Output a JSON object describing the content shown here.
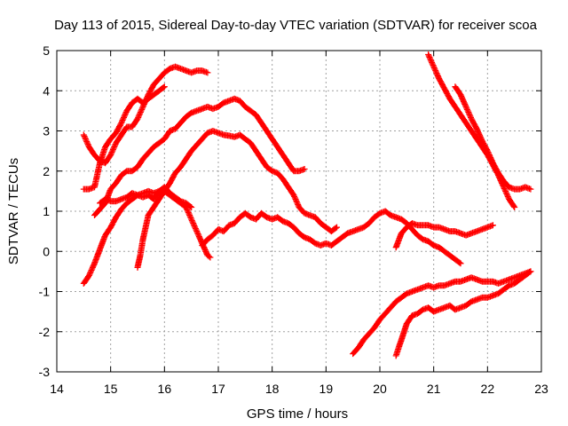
{
  "chart_data": {
    "type": "scatter",
    "title": "Day 113 of 2015, Sidereal Day-to-day VTEC variation (SDTVAR) for receiver scoa",
    "xlabel": "GPS time / hours",
    "ylabel": "SDTVAR / TECUs",
    "xlim": [
      14,
      23
    ],
    "ylim": [
      -3,
      5
    ],
    "xticks": [
      "14",
      "15",
      "16",
      "17",
      "18",
      "19",
      "20",
      "21",
      "22",
      "23"
    ],
    "yticks": [
      "-3",
      "-2",
      "-1",
      "0",
      "1",
      "2",
      "3",
      "4",
      "5"
    ],
    "grid": true,
    "marker": "+",
    "color": "#ff0000",
    "series": [
      {
        "x": [
          14.5,
          14.6,
          14.7,
          14.8,
          14.9,
          15.0,
          15.1,
          15.2,
          15.3,
          15.4,
          15.5,
          15.6,
          15.7,
          15.8,
          15.9,
          16.0,
          16.1,
          16.2,
          16.3,
          16.4,
          16.5,
          16.6,
          16.7,
          16.8
        ],
        "y": [
          2.9,
          2.6,
          2.4,
          2.25,
          2.2,
          2.4,
          2.7,
          2.9,
          3.1,
          3.1,
          3.3,
          3.6,
          3.9,
          4.15,
          4.3,
          4.45,
          4.55,
          4.6,
          4.55,
          4.5,
          4.45,
          4.5,
          4.5,
          4.45
        ]
      },
      {
        "x": [
          14.5,
          14.6,
          14.7,
          14.8,
          14.85,
          14.9,
          15.0,
          15.1,
          15.2,
          15.3,
          15.4,
          15.5,
          15.6,
          15.7,
          15.8,
          15.9,
          16.0
        ],
        "y": [
          1.55,
          1.55,
          1.6,
          2.2,
          2.4,
          2.6,
          2.8,
          2.95,
          3.2,
          3.5,
          3.7,
          3.8,
          3.7,
          3.8,
          3.9,
          4.0,
          4.1
        ]
      },
      {
        "x": [
          14.7,
          14.8,
          14.9,
          15.0,
          15.1,
          15.2,
          15.3,
          15.4,
          15.5,
          15.6,
          15.7,
          15.8,
          15.9,
          16.0,
          16.1,
          16.2,
          16.3,
          16.4,
          16.5,
          16.6,
          16.7,
          16.8,
          16.9,
          17.0,
          17.1,
          17.2,
          17.3,
          17.4,
          17.5,
          17.6,
          17.7,
          17.8,
          17.9,
          18.0,
          18.1,
          18.2,
          18.3,
          18.4,
          18.5,
          18.6
        ],
        "y": [
          0.9,
          1.05,
          1.2,
          1.55,
          1.7,
          1.9,
          2.0,
          2.0,
          2.1,
          2.3,
          2.45,
          2.6,
          2.7,
          2.8,
          3.0,
          3.05,
          3.2,
          3.35,
          3.45,
          3.5,
          3.55,
          3.6,
          3.55,
          3.6,
          3.7,
          3.75,
          3.8,
          3.75,
          3.6,
          3.5,
          3.4,
          3.2,
          3.0,
          2.8,
          2.6,
          2.4,
          2.2,
          2.0,
          2.0,
          2.05
        ]
      },
      {
        "x": [
          15.5,
          15.55,
          15.6,
          15.65,
          15.7,
          15.8,
          15.9,
          16.0,
          16.1,
          16.2,
          16.3,
          16.4,
          16.5,
          16.6,
          16.7,
          16.8,
          16.9,
          17.0,
          17.1,
          17.2,
          17.3,
          17.4,
          17.5,
          17.6,
          17.7,
          17.8,
          17.9,
          18.0,
          18.1,
          18.2,
          18.3,
          18.4,
          18.5,
          18.6,
          18.7,
          18.8,
          18.9,
          19.0,
          19.1,
          19.2
        ],
        "y": [
          -0.4,
          -0.1,
          0.3,
          0.6,
          0.9,
          1.1,
          1.3,
          1.5,
          1.7,
          1.95,
          2.1,
          2.3,
          2.5,
          2.65,
          2.8,
          2.95,
          3.0,
          2.95,
          2.9,
          2.88,
          2.85,
          2.9,
          2.8,
          2.7,
          2.5,
          2.3,
          2.1,
          2.0,
          1.95,
          1.8,
          1.6,
          1.4,
          1.1,
          0.95,
          0.9,
          0.85,
          0.7,
          0.6,
          0.5,
          0.6
        ]
      },
      {
        "x": [
          14.5,
          14.6,
          14.7,
          14.8,
          14.9,
          15.0,
          15.1,
          15.2,
          15.3,
          15.4,
          15.5,
          15.6,
          15.7,
          15.8,
          15.9,
          16.0,
          16.1,
          16.2,
          16.3,
          16.4,
          16.5,
          16.6,
          16.7,
          16.8,
          16.85
        ],
        "y": [
          -0.8,
          -0.6,
          -0.3,
          0.05,
          0.4,
          0.6,
          0.85,
          1.05,
          1.2,
          1.3,
          1.4,
          1.45,
          1.5,
          1.45,
          1.5,
          1.5,
          1.4,
          1.3,
          1.2,
          1.1,
          0.8,
          0.5,
          0.2,
          -0.1,
          -0.15
        ]
      },
      {
        "x": [
          14.8,
          14.9,
          15.0,
          15.1,
          15.2,
          15.3,
          15.4,
          15.5,
          15.6,
          15.7,
          15.8,
          15.9,
          16.0,
          16.1,
          16.2,
          16.3,
          16.4,
          16.5
        ],
        "y": [
          1.2,
          1.3,
          1.25,
          1.25,
          1.3,
          1.35,
          1.45,
          1.4,
          1.35,
          1.4,
          1.3,
          1.5,
          1.6,
          1.45,
          1.35,
          1.25,
          1.2,
          1.1
        ]
      },
      {
        "x": [
          16.7,
          16.8,
          16.9,
          17.0,
          17.1,
          17.2,
          17.3,
          17.4,
          17.5,
          17.6,
          17.7,
          17.8,
          17.9,
          18.0,
          18.1,
          18.2,
          18.3,
          18.4,
          18.5,
          18.6,
          18.7,
          18.8,
          18.9,
          19.0,
          19.1,
          19.2,
          19.3,
          19.4,
          19.5,
          19.6,
          19.7,
          19.8,
          19.9,
          20.0,
          20.1,
          20.2,
          20.3,
          20.4,
          20.5,
          20.6,
          20.7,
          20.8,
          20.9,
          21.0,
          21.1,
          21.2,
          21.3,
          21.4,
          21.5
        ],
        "y": [
          0.15,
          0.3,
          0.4,
          0.55,
          0.5,
          0.65,
          0.7,
          0.85,
          0.95,
          0.85,
          0.8,
          0.95,
          0.85,
          0.8,
          0.85,
          0.75,
          0.7,
          0.6,
          0.45,
          0.35,
          0.3,
          0.2,
          0.15,
          0.2,
          0.15,
          0.25,
          0.35,
          0.45,
          0.5,
          0.55,
          0.6,
          0.7,
          0.85,
          0.95,
          1.0,
          0.9,
          0.85,
          0.8,
          0.7,
          0.55,
          0.4,
          0.3,
          0.25,
          0.15,
          0.1,
          0.0,
          -0.1,
          -0.2,
          -0.3
        ]
      },
      {
        "x": [
          20.3,
          20.4,
          20.5,
          20.6,
          20.7,
          20.8,
          20.9,
          21.0,
          21.1,
          21.2,
          21.3,
          21.4,
          21.5,
          21.6,
          21.7,
          21.8,
          21.9,
          22.0,
          22.1
        ],
        "y": [
          0.1,
          0.45,
          0.6,
          0.7,
          0.65,
          0.65,
          0.65,
          0.6,
          0.6,
          0.55,
          0.5,
          0.5,
          0.45,
          0.4,
          0.45,
          0.5,
          0.55,
          0.6,
          0.65
        ]
      },
      {
        "x": [
          19.5,
          19.6,
          19.7,
          19.8,
          19.9,
          20.0,
          20.1,
          20.2,
          20.3,
          20.4,
          20.5,
          20.6,
          20.7,
          20.8,
          20.9,
          21.0,
          21.1,
          21.2,
          21.3,
          21.4,
          21.5,
          21.6,
          21.7,
          21.8,
          21.9,
          22.0,
          22.1,
          22.2,
          22.3,
          22.4,
          22.5,
          22.6,
          22.7,
          22.8
        ],
        "y": [
          -2.55,
          -2.4,
          -2.2,
          -2.05,
          -1.9,
          -1.7,
          -1.55,
          -1.4,
          -1.25,
          -1.15,
          -1.05,
          -1.0,
          -0.95,
          -0.9,
          -0.85,
          -0.9,
          -0.85,
          -0.85,
          -0.8,
          -0.75,
          -0.75,
          -0.7,
          -0.65,
          -0.7,
          -0.75,
          -0.75,
          -0.75,
          -0.8,
          -0.75,
          -0.7,
          -0.65,
          -0.6,
          -0.55,
          -0.5
        ]
      },
      {
        "x": [
          20.3,
          20.4,
          20.5,
          20.6,
          20.7,
          20.8,
          20.9,
          21.0,
          21.1,
          21.2,
          21.3,
          21.4,
          21.5,
          21.6,
          21.7,
          21.8,
          21.9,
          22.0,
          22.1,
          22.2,
          22.3,
          22.4,
          22.5,
          22.6,
          22.7,
          22.8
        ],
        "y": [
          -2.6,
          -2.2,
          -1.8,
          -1.6,
          -1.55,
          -1.45,
          -1.4,
          -1.5,
          -1.45,
          -1.4,
          -1.35,
          -1.45,
          -1.4,
          -1.35,
          -1.25,
          -1.2,
          -1.15,
          -1.15,
          -1.1,
          -1.05,
          -0.95,
          -0.85,
          -0.8,
          -0.7,
          -0.6,
          -0.5
        ]
      },
      {
        "x": [
          20.9,
          21.0,
          21.1,
          21.2,
          21.3,
          21.4,
          21.5,
          21.6,
          21.7,
          21.8,
          21.9,
          22.0,
          22.1,
          22.2,
          22.3,
          22.4,
          22.5
        ],
        "y": [
          4.9,
          4.6,
          4.3,
          4.05,
          3.8,
          3.6,
          3.4,
          3.2,
          3.0,
          2.8,
          2.6,
          2.4,
          2.15,
          1.9,
          1.6,
          1.3,
          1.1
        ]
      },
      {
        "x": [
          21.4,
          21.5,
          21.6,
          21.7,
          21.8,
          21.9,
          22.0,
          22.1,
          22.2,
          22.3,
          22.4,
          22.5,
          22.6,
          22.7,
          22.8
        ],
        "y": [
          4.1,
          3.9,
          3.6,
          3.3,
          3.05,
          2.75,
          2.5,
          2.2,
          1.95,
          1.75,
          1.6,
          1.55,
          1.55,
          1.6,
          1.55
        ]
      }
    ]
  }
}
